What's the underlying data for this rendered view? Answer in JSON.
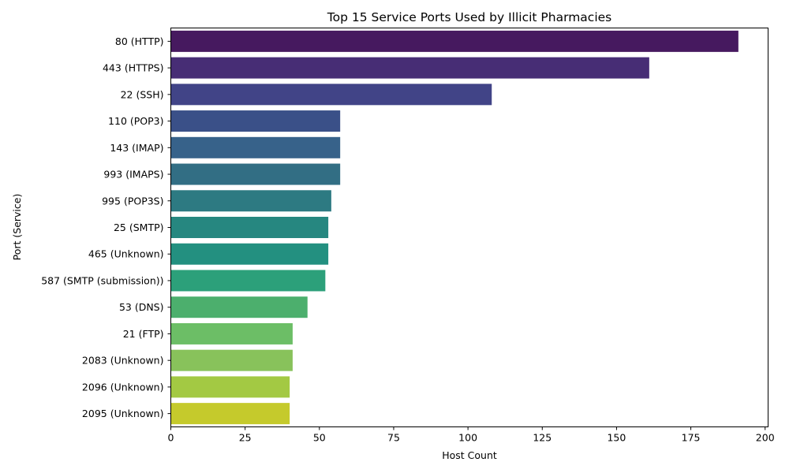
{
  "chart_data": {
    "type": "bar",
    "orientation": "horizontal",
    "title": "Top 15 Service Ports Used by Illicit Pharmacies",
    "xlabel": "Host Count",
    "ylabel": "Port (Service)",
    "xlim": [
      0,
      201
    ],
    "xticks": [
      0,
      25,
      50,
      75,
      100,
      125,
      150,
      175,
      200
    ],
    "grid": false,
    "legend": "none",
    "palette": "viridis",
    "categories": [
      "80 (HTTP)",
      "443 (HTTPS)",
      "22 (SSH)",
      "110 (POP3)",
      "143 (IMAP)",
      "993 (IMAPS)",
      "995 (POP3S)",
      "25 (SMTP)",
      "465 (Unknown)",
      "587 (SMTP (submission))",
      "53 (DNS)",
      "21 (FTP)",
      "2083 (Unknown)",
      "2096 (Unknown)",
      "2095 (Unknown)"
    ],
    "values": [
      191,
      161,
      108,
      57,
      57,
      57,
      54,
      53,
      53,
      52,
      46,
      41,
      41,
      40,
      40
    ],
    "colors": [
      "#46195f",
      "#472d75",
      "#414487",
      "#3a5088",
      "#37628a",
      "#326e84",
      "#2d7a82",
      "#268780",
      "#239080",
      "#2ca07a",
      "#4caf6d",
      "#6cbe66",
      "#88c25b",
      "#a3c943",
      "#c5ca2c"
    ]
  }
}
